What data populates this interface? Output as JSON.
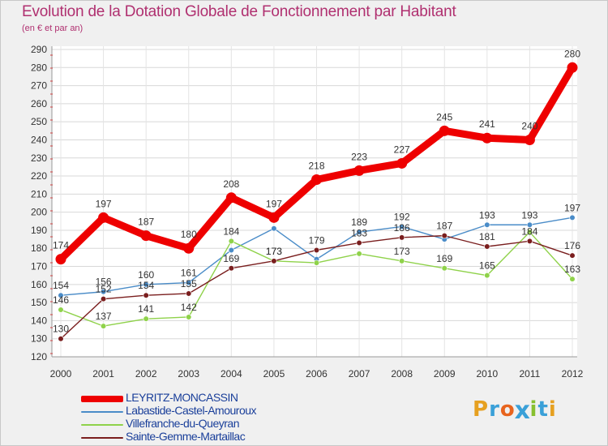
{
  "title": "Evolution de la Dotation Globale de Fonctionnement par Habitant",
  "subtitle": "(en € et par an)",
  "logo": {
    "text": "Proxiti",
    "letters": [
      {
        "ch": "P",
        "color": "#e6a020"
      },
      {
        "ch": "r",
        "color": "#3aa0d8"
      },
      {
        "ch": "o",
        "color": "#e8641e"
      },
      {
        "ch": "x",
        "color": "#3aa0d8"
      },
      {
        "ch": "i",
        "color": "#88c030"
      },
      {
        "ch": "t",
        "color": "#3aa0d8"
      },
      {
        "ch": "i",
        "color": "#e6a020"
      }
    ]
  },
  "chart_data": {
    "type": "line",
    "title": "Evolution de la Dotation Globale de Fonctionnement par Habitant",
    "subtitle": "(en € et par an)",
    "x": [
      "2000",
      "2001",
      "2002",
      "2003",
      "2004",
      "2005",
      "2006",
      "2007",
      "2008",
      "2009",
      "2010",
      "2011",
      "2012"
    ],
    "ylim": [
      120,
      290
    ],
    "yticks": [
      120,
      130,
      140,
      150,
      160,
      170,
      180,
      190,
      200,
      210,
      220,
      230,
      240,
      250,
      260,
      270,
      280,
      290
    ],
    "grid": true,
    "legend_position": "bottom-left",
    "series": [
      {
        "name": "LEYRITZ-MONCASSIN",
        "color": "#ee0000",
        "values": [
          174,
          197,
          187,
          180,
          208,
          197,
          218,
          223,
          227,
          245,
          241,
          240,
          280
        ],
        "labels": [
          "174",
          "197",
          "187",
          "180",
          "208",
          "197",
          "218",
          "223",
          "227",
          "245",
          "241",
          "240",
          "280"
        ]
      },
      {
        "name": "Labastide-Castel-Amouroux",
        "color": "#4a8cc8",
        "values": [
          154,
          156,
          160,
          161,
          179,
          191,
          174,
          189,
          192,
          185,
          193,
          193,
          197
        ],
        "labels": [
          "154",
          "156",
          "160",
          "161",
          "",
          "",
          "",
          "189",
          "192",
          "",
          "193",
          "193",
          "197"
        ]
      },
      {
        "name": "Villefranche-du-Queyran",
        "color": "#8fd24a",
        "values": [
          146,
          137,
          141,
          142,
          184,
          173,
          172,
          177,
          173,
          169,
          165,
          189,
          163
        ],
        "labels": [
          "146",
          "137",
          "141",
          "142",
          "184",
          "173",
          "",
          "",
          "173",
          "169",
          "165",
          "",
          "163"
        ]
      },
      {
        "name": "Sainte-Gemme-Martaillac",
        "color": "#7a1e1e",
        "values": [
          130,
          152,
          154,
          155,
          169,
          173,
          179,
          183,
          186,
          187,
          181,
          184,
          176
        ],
        "labels": [
          "130",
          "152",
          "154",
          "155",
          "169",
          "173",
          "179",
          "183",
          "186",
          "187",
          "181",
          "184",
          "176"
        ]
      }
    ]
  }
}
